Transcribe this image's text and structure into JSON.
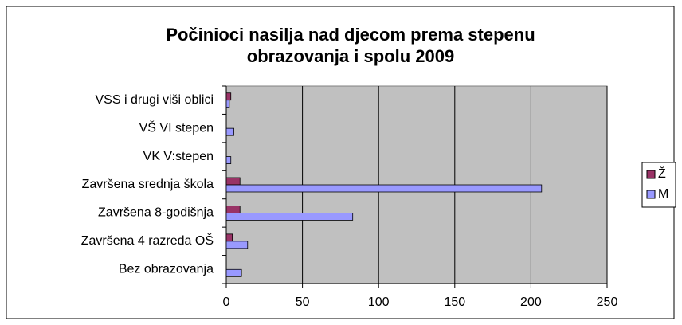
{
  "chart_data": {
    "type": "hbar",
    "title": [
      "Počinioci nasilja nad djecom prema stepenu",
      "obrazovanja i spolu 2009"
    ],
    "categories": [
      "Bez obrazovanja",
      "Završena 4 razreda OŠ",
      "Završena 8-godišnja",
      "Završena srednja škola",
      "VK V:stepen",
      "VŠ VI stepen",
      "VSS i drugi viši oblici"
    ],
    "series": [
      {
        "name": "Ž",
        "color": "#993366",
        "values": [
          0,
          4,
          9,
          9,
          0,
          0,
          3
        ]
      },
      {
        "name": "M",
        "color": "#9999ff",
        "values": [
          10,
          14,
          83,
          207,
          3,
          5,
          2
        ]
      }
    ],
    "xlim": [
      0,
      250
    ],
    "xticks": [
      0,
      50,
      100,
      150,
      200,
      250
    ],
    "grid": true,
    "legend": "right",
    "plot_background": "#c0c0c0"
  }
}
